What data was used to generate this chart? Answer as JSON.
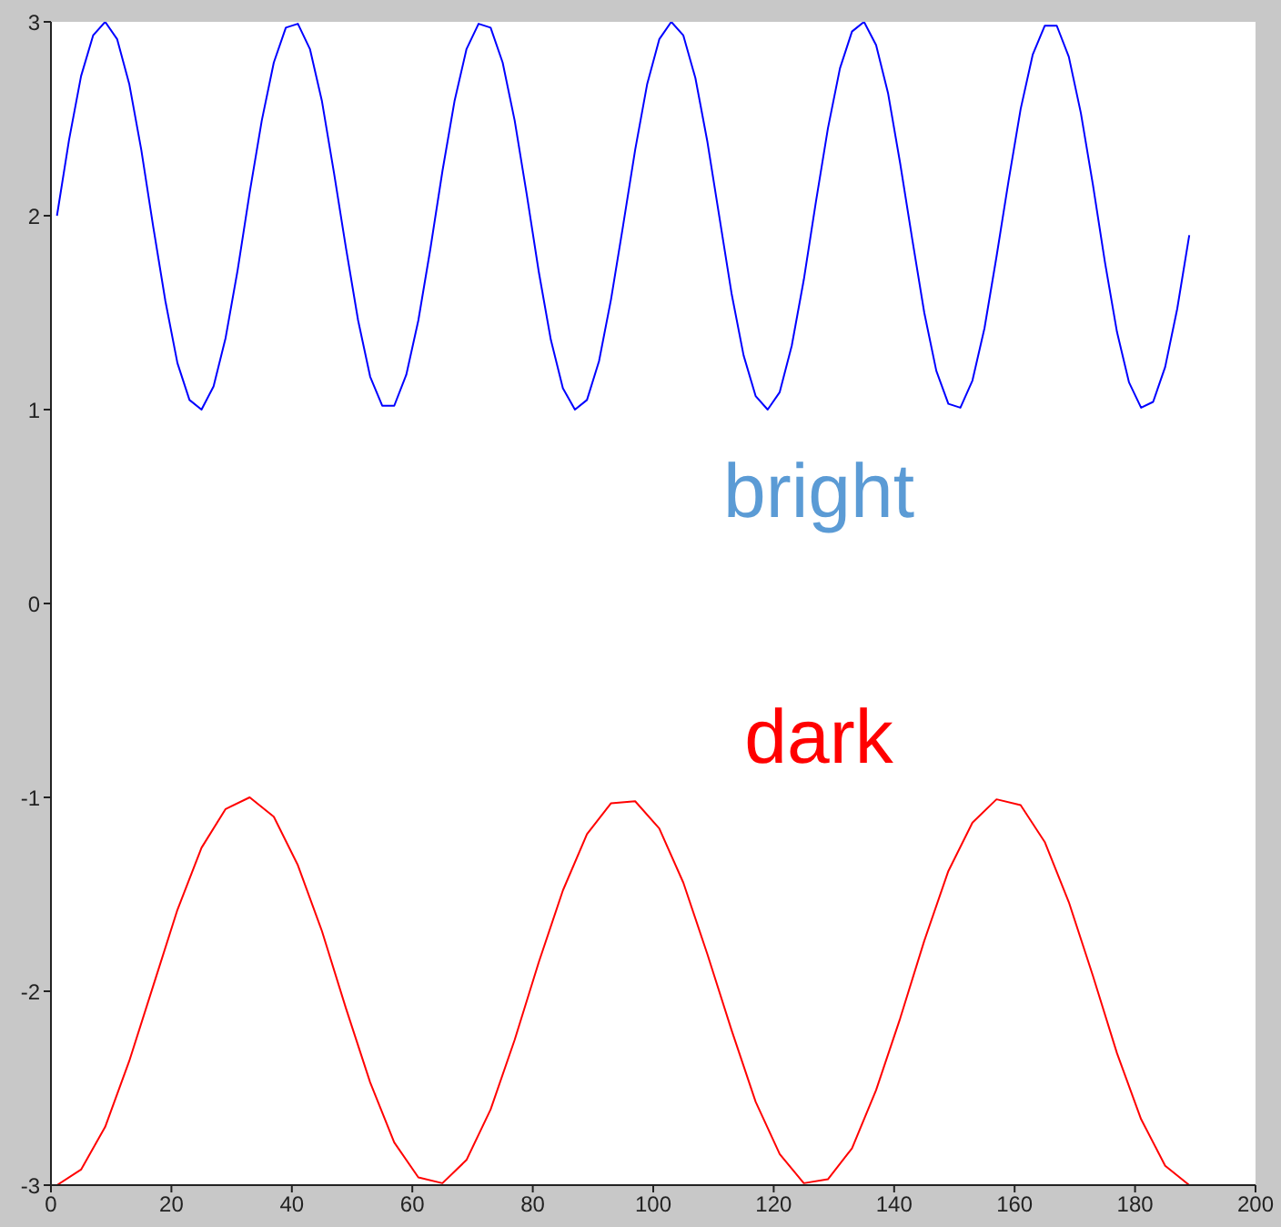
{
  "chart_data": {
    "type": "line",
    "xlim": [
      0,
      200
    ],
    "xticks": [
      0,
      20,
      40,
      60,
      80,
      100,
      120,
      140,
      160,
      180,
      200
    ],
    "ylim": [
      -3,
      3
    ],
    "yticks": [
      -3,
      -2,
      -1,
      0,
      1,
      2,
      3
    ],
    "series": [
      {
        "name": "bright",
        "color": "#0000ff",
        "x": [
          1,
          3,
          5,
          7,
          9,
          11,
          13,
          15,
          17,
          19,
          21,
          23,
          25,
          27,
          29,
          31,
          33,
          35,
          37,
          39,
          41,
          43,
          45,
          47,
          49,
          51,
          53,
          55,
          57,
          59,
          61,
          63,
          65,
          67,
          69,
          71,
          73,
          75,
          77,
          79,
          81,
          83,
          85,
          87,
          89,
          91,
          93,
          95,
          97,
          99,
          101,
          103,
          105,
          107,
          109,
          111,
          113,
          115,
          117,
          119,
          121,
          123,
          125,
          127,
          129,
          131,
          133,
          135,
          137,
          139,
          141,
          143,
          145,
          147,
          149,
          151,
          153,
          155,
          157,
          159,
          161,
          163,
          165,
          167,
          169,
          171,
          173,
          175,
          177,
          179,
          181,
          183,
          185,
          187,
          189
        ],
        "values": [
          2,
          2.39,
          2.72,
          2.93,
          3.0,
          2.91,
          2.68,
          2.34,
          1.94,
          1.56,
          1.24,
          1.05,
          1.0,
          1.12,
          1.37,
          1.72,
          2.12,
          2.49,
          2.79,
          2.97,
          2.99,
          2.86,
          2.59,
          2.22,
          1.83,
          1.46,
          1.17,
          1.02,
          1.02,
          1.18,
          1.46,
          1.83,
          2.23,
          2.59,
          2.86,
          2.99,
          2.97,
          2.79,
          2.49,
          2.11,
          1.71,
          1.36,
          1.11,
          1.0,
          1.05,
          1.25,
          1.57,
          1.95,
          2.34,
          2.68,
          2.91,
          3.0,
          2.93,
          2.71,
          2.38,
          1.99,
          1.6,
          1.28,
          1.07,
          1.0,
          1.09,
          1.33,
          1.67,
          2.07,
          2.45,
          2.76,
          2.95,
          3.0,
          2.88,
          2.63,
          2.27,
          1.88,
          1.5,
          1.2,
          1.03,
          1.01,
          1.15,
          1.42,
          1.79,
          2.18,
          2.55,
          2.83,
          2.98,
          2.98,
          2.82,
          2.53,
          2.16,
          1.76,
          1.4,
          1.14,
          1.01,
          1.04,
          1.22,
          1.52,
          1.9
        ]
      },
      {
        "name": "dark",
        "color": "#ff0000",
        "x": [
          1,
          5,
          9,
          13,
          17,
          21,
          25,
          29,
          33,
          37,
          41,
          45,
          49,
          53,
          57,
          61,
          65,
          69,
          73,
          77,
          81,
          85,
          89,
          93,
          97,
          101,
          105,
          109,
          113,
          117,
          121,
          125,
          129,
          133,
          137,
          141,
          145,
          149,
          153,
          157,
          161,
          165,
          169,
          173,
          177,
          181,
          185,
          189
        ],
        "values": [
          -3,
          -2.92,
          -2.7,
          -2.36,
          -1.97,
          -1.58,
          -1.26,
          -1.06,
          -1.0,
          -1.1,
          -1.35,
          -1.69,
          -2.09,
          -2.47,
          -2.78,
          -2.96,
          -2.99,
          -2.87,
          -2.61,
          -2.25,
          -1.85,
          -1.48,
          -1.19,
          -1.03,
          -1.02,
          -1.16,
          -1.44,
          -1.81,
          -2.2,
          -2.57,
          -2.84,
          -2.99,
          -2.97,
          -2.81,
          -2.51,
          -2.14,
          -1.74,
          -1.38,
          -1.13,
          -1.01,
          -1.04,
          -1.23,
          -1.54,
          -1.92,
          -2.32,
          -2.66,
          -2.9,
          -3.0
        ]
      }
    ]
  }
}
